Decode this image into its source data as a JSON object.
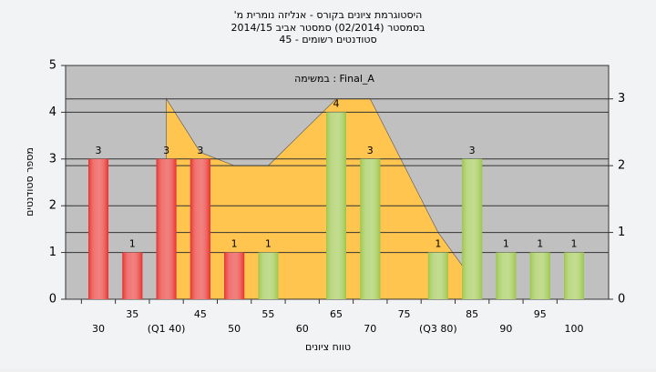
{
  "chart_data": {
    "type": "bar",
    "title": [
      "היסטוגרמת ציונים בקורס - אנליזה נומרית מ'",
      "בסמסטר (02/2014)  סמסטר אביב 2014/15",
      "סטודנטים רשומים - 45"
    ],
    "annotation": "Final_A : במשימה",
    "y_label": "מספר סטודנטים",
    "x_label": "טווח ציונים",
    "categories": [
      "30",
      "35",
      "(Q1 40)",
      "45",
      "50",
      "55",
      "60",
      "65",
      "70",
      "75",
      "(Q3 80)",
      "85",
      "90",
      "95",
      "100"
    ],
    "series": [
      {
        "type": "bar",
        "values": [
          3,
          1,
          3,
          3,
          1,
          1,
          null,
          4,
          3,
          null,
          1,
          3,
          1,
          1,
          1
        ],
        "colors": [
          "#e8302c",
          "#e8302c",
          "#e8302c",
          "#e8302c",
          "#e8302c",
          "#9cc64a",
          "#9cc64a",
          "#9cc64a",
          "#9cc64a",
          "#9cc64a",
          "#9cc64a",
          "#9cc64a",
          "#9cc64a",
          "#9cc64a",
          "#9cc64a"
        ]
      },
      {
        "type": "area",
        "axis": "y2",
        "color": "#ffc54f",
        "values": [
          null,
          null,
          3,
          2.2,
          2,
          2,
          2.5,
          3,
          3,
          2,
          1,
          0.3,
          null,
          null,
          null
        ]
      }
    ],
    "ylim": [
      0,
      5
    ],
    "yticks": [
      0,
      1,
      2,
      3,
      4,
      5
    ],
    "y2lim": [
      0,
      3.5
    ],
    "y2ticks": [
      0,
      1,
      2,
      3
    ],
    "grid": true
  }
}
